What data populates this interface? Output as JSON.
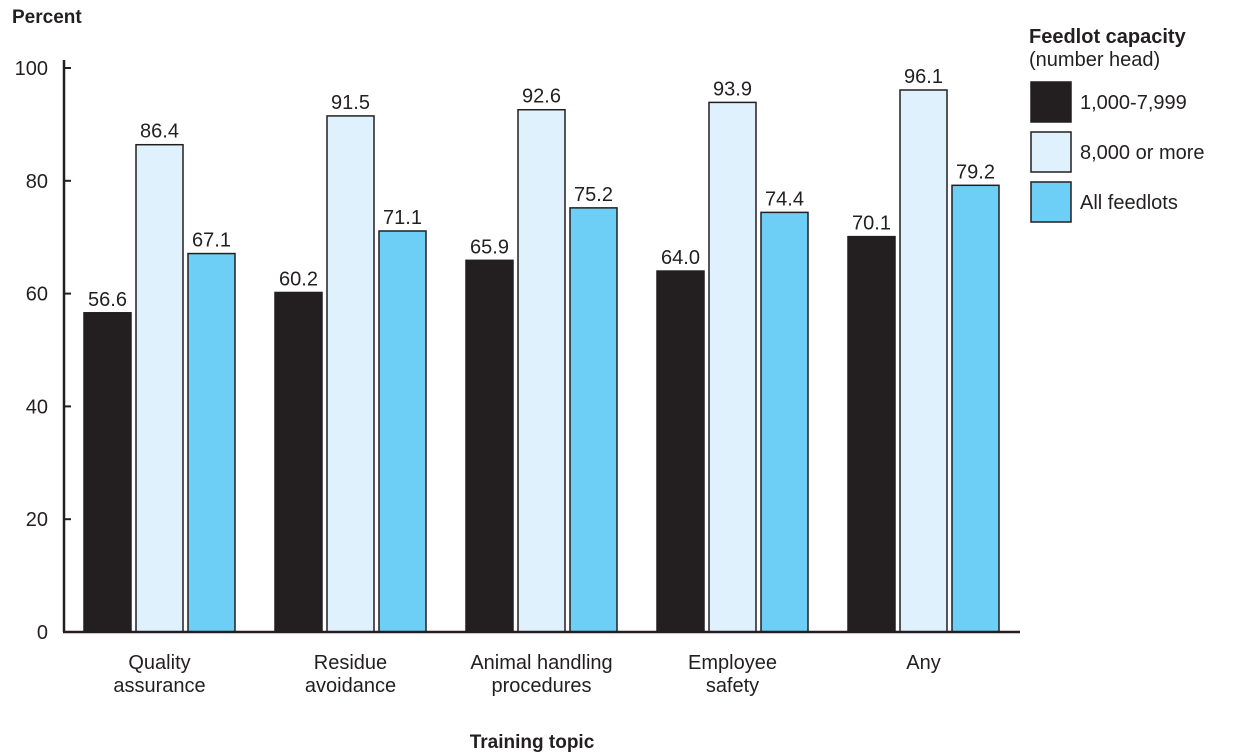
{
  "chart_data": {
    "type": "bar",
    "ylabel": "Percent",
    "xlabel": "Training topic",
    "ylim": [
      0,
      100
    ],
    "yticks": [
      0,
      20,
      40,
      60,
      80,
      100
    ],
    "grid": false,
    "legend": {
      "title": "Feedlot capacity",
      "subtitle": "(number head)",
      "placement": "right"
    },
    "categories": [
      [
        "Quality",
        "assurance"
      ],
      [
        "Residue",
        "avoidance"
      ],
      [
        "Animal handling",
        "procedures"
      ],
      [
        "Employee",
        "safety"
      ],
      [
        "Any"
      ]
    ],
    "series": [
      {
        "name": "1,000-7,999",
        "color": "#231f20",
        "values": [
          56.6,
          60.2,
          65.9,
          64.0,
          70.1
        ]
      },
      {
        "name": "8,000 or more",
        "color": "#dff1fc",
        "values": [
          86.4,
          91.5,
          92.6,
          93.9,
          96.1
        ]
      },
      {
        "name": "All feedlots",
        "color": "#6dcff6",
        "values": [
          67.1,
          71.1,
          75.2,
          74.4,
          79.2
        ]
      }
    ]
  }
}
